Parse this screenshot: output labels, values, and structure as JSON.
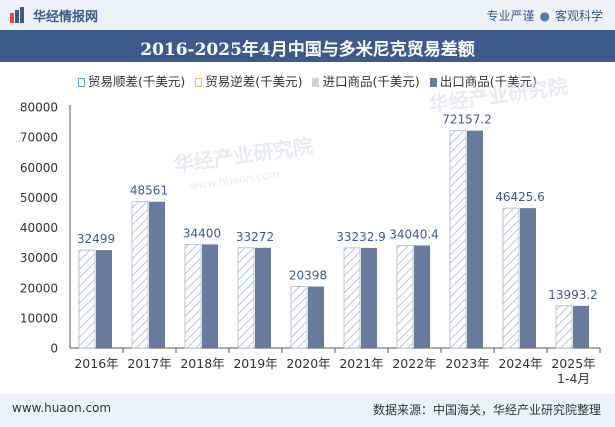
{
  "header": {
    "site_name": "华经情报网",
    "tagline_left": "专业严谨",
    "tagline_right": "客观科学"
  },
  "chart_data": {
    "type": "bar",
    "title": "2016-2025年4月中国与多米尼克贸易差额",
    "categories": [
      "2016年",
      "2017年",
      "2018年",
      "2019年",
      "2020年",
      "2021年",
      "2022年",
      "2023年",
      "2024年",
      "2025年\n1-4月"
    ],
    "series": [
      {
        "name": "贸易顺差(千美元)",
        "values": [
          32499,
          48561,
          34400,
          33272,
          20398,
          33232.9,
          34040.4,
          72157.2,
          46425.6,
          13993.2
        ]
      },
      {
        "name": "贸易逆差(千美元)",
        "values": [
          0,
          0,
          0,
          0,
          0,
          0,
          0,
          0,
          0,
          0
        ]
      },
      {
        "name": "进口商品(千美元)",
        "values": [
          0,
          0,
          0,
          0,
          0,
          0,
          0,
          0,
          0,
          0
        ]
      },
      {
        "name": "出口商品(千美元)",
        "values": [
          32499,
          48561,
          34400,
          33272,
          20398,
          33232.9,
          34040.4,
          72157.2,
          46425.6,
          13993.2
        ]
      }
    ],
    "data_labels": [
      "32499",
      "48561",
      "34400",
      "33272",
      "20398",
      "33232.9",
      "34040.4",
      "72157.2",
      "46425.6",
      "13993.2"
    ],
    "ylim": [
      0,
      80000
    ],
    "yticks": [
      "0",
      "10000",
      "20000",
      "30000",
      "40000",
      "50000",
      "60000",
      "70000",
      "80000"
    ],
    "legend_position": "top",
    "colors": {
      "surplus_stroke": "#a9b6c6",
      "surplus_hatch": "#bcc6d3",
      "deficit": "#e8c05a",
      "import": "#cfd3da",
      "export": "#687a9e",
      "label": "#3d5a8a"
    }
  },
  "watermark": {
    "text": "华经产业研究院",
    "url": "www.huaon.com"
  },
  "footer": {
    "website": "www.huaon.com",
    "source": "数据来源：中国海关，华经产业研究院整理"
  }
}
